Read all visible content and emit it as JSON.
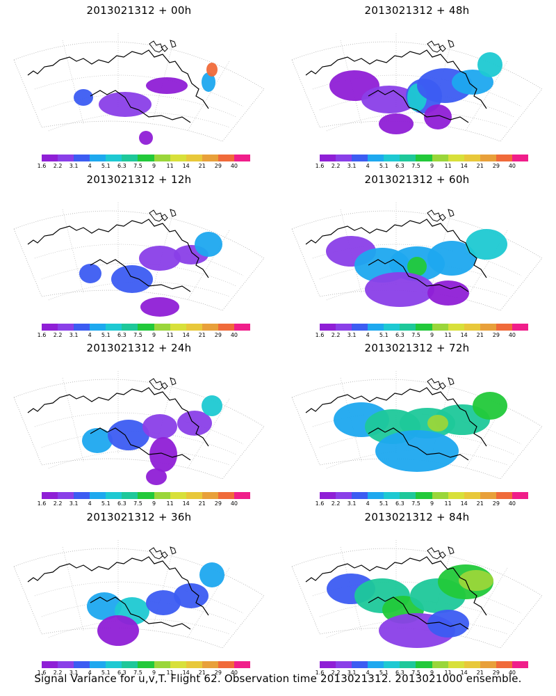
{
  "panels": [
    {
      "title": "2013021312 + 00h",
      "hours": 0
    },
    {
      "title": "2013021312 + 48h",
      "hours": 48
    },
    {
      "title": "2013021312 + 12h",
      "hours": 12
    },
    {
      "title": "2013021312 + 60h",
      "hours": 60
    },
    {
      "title": "2013021312 + 24h",
      "hours": 24
    },
    {
      "title": "2013021312 + 72h",
      "hours": 72
    },
    {
      "title": "2013021312 + 36h",
      "hours": 36
    },
    {
      "title": "2013021312 + 84h",
      "hours": 84
    }
  ],
  "colorbar": {
    "labels": [
      "1.6",
      "2.2",
      "3.1",
      "4",
      "5.1",
      "6.3",
      "7.5",
      "9",
      "11",
      "14",
      "21",
      "29",
      "40"
    ],
    "colors": [
      "#8f1fd6",
      "#8a3fe8",
      "#3c5cf2",
      "#1ea8ef",
      "#1ec9d2",
      "#1ec89a",
      "#22c93a",
      "#9ad63a",
      "#d8e03a",
      "#e8c83a",
      "#e8a03a",
      "#f06a3a",
      "#f01e8a"
    ]
  },
  "footer": "Signal Variance for u,v,T. Flight 62. Observation time 2013021312. 2013021000 ensemble."
}
